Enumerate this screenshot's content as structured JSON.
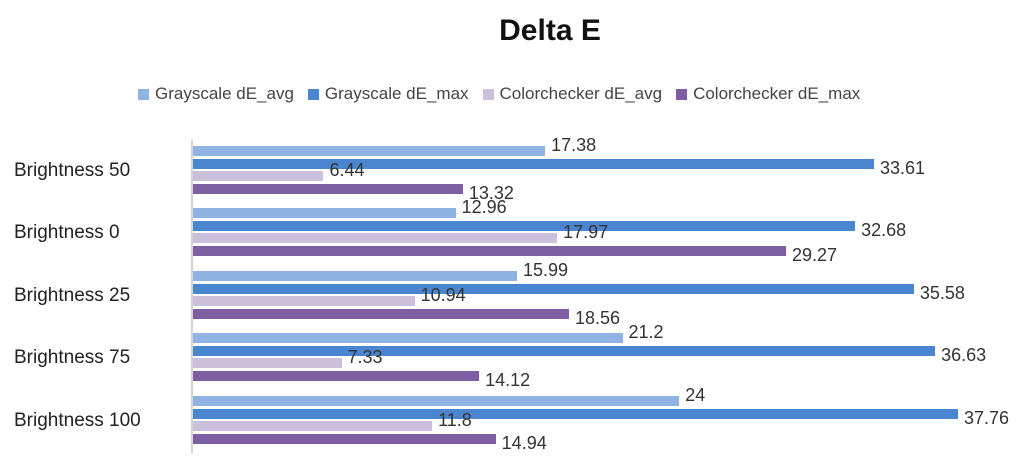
{
  "chart_data": {
    "type": "bar",
    "orientation": "horizontal",
    "title": "Delta E",
    "xlabel": "",
    "ylabel": "",
    "categories": [
      "Brightness 50",
      "Brightness 0",
      "Brightness 25",
      "Brightness 75",
      "Brightness 100"
    ],
    "series": [
      {
        "name": "Grayscale dE_avg",
        "color": "#8fb4e3",
        "values": [
          17.38,
          12.96,
          15.99,
          21.2,
          24
        ]
      },
      {
        "name": "Grayscale dE_max",
        "color": "#4a86d0",
        "values": [
          33.61,
          32.68,
          35.58,
          36.63,
          37.76
        ]
      },
      {
        "name": "Colorchecker dE_avg",
        "color": "#cbc0dc",
        "values": [
          6.44,
          17.97,
          10.94,
          7.33,
          11.8
        ]
      },
      {
        "name": "Colorchecker dE_max",
        "color": "#7d5ea3",
        "values": [
          13.32,
          29.27,
          18.56,
          14.12,
          14.94
        ]
      }
    ],
    "value_labels": [
      [
        "17.38",
        "33.61",
        "6.44",
        "13.32"
      ],
      [
        "12.96",
        "32.68",
        "17.97",
        "29.27"
      ],
      [
        "15.99",
        "35.58",
        "10.94",
        "18.56"
      ],
      [
        "21.2",
        "36.63",
        "7.33",
        "14.12"
      ],
      [
        "24",
        "37.76",
        "11.8",
        "14.94"
      ]
    ],
    "legend_position": "top",
    "grid": false,
    "xlim": [
      0,
      40
    ]
  }
}
